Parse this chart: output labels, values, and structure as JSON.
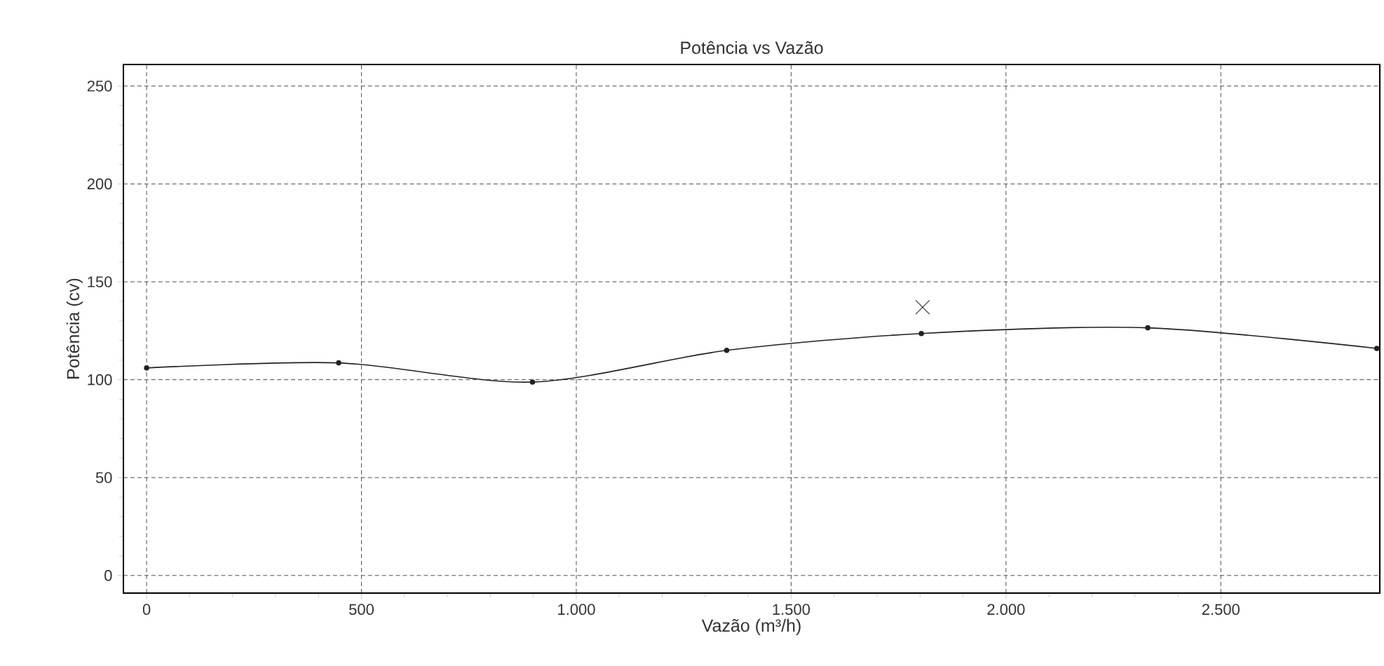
{
  "chart_data": {
    "type": "line",
    "title": "Potência vs Vazão",
    "xlabel": "Vazão (m³/h)",
    "ylabel": "Potência (cv)",
    "xlim": [
      -54,
      2870
    ],
    "ylim": [
      -9,
      261
    ],
    "xticks": [
      0,
      500,
      {
        "value": 1000,
        "label": "1.000"
      },
      {
        "value": 1500,
        "label": "1.500"
      },
      {
        "value": 2000,
        "label": "2.000"
      },
      {
        "value": 2500,
        "label": "2.500"
      }
    ],
    "yticks": [
      0,
      50,
      100,
      150,
      200,
      250
    ],
    "grid": true,
    "marker": "circle",
    "line_style": "solid",
    "series": [
      {
        "color": "#222222",
        "x": [
          0,
          447,
          898,
          1350,
          1803,
          2330,
          2863
        ],
        "values": [
          106,
          108.6,
          98.8,
          115,
          123.6,
          126.5,
          116
        ]
      },
      {
        "type": "scatter",
        "marker": "cross",
        "color": "#333333",
        "x": [
          1806
        ],
        "values": [
          137
        ]
      }
    ]
  }
}
